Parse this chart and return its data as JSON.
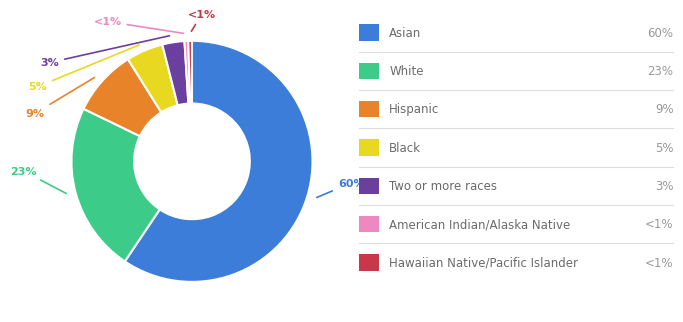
{
  "labels": [
    "Asian",
    "White",
    "Hispanic",
    "Black",
    "Two or more races",
    "American Indian/Alaska Native",
    "Hawaiian Native/Pacific Islander"
  ],
  "values": [
    60,
    23,
    9,
    5,
    3,
    0.5,
    0.5
  ],
  "colors": [
    "#3B7DD8",
    "#3DCB8A",
    "#E8832A",
    "#E8D820",
    "#6B3FA0",
    "#F088C0",
    "#C8384A"
  ],
  "legend_labels": [
    "Asian",
    "White",
    "Hispanic",
    "Black",
    "Two or more races",
    "American Indian/Alaska Native",
    "Hawaiian Native/Pacific Islander"
  ],
  "legend_percents": [
    "60%",
    "23%",
    "9%",
    "5%",
    "3%",
    "<1%",
    "<1%"
  ],
  "slice_labels": [
    "60%",
    "23%",
    "9%",
    "5%",
    "3%",
    "<1%",
    "<1%"
  ],
  "label_colors": [
    "#3B7DD8",
    "#3DCB8A",
    "#E8832A",
    "#E8D820",
    "#6B3FA0",
    "#F088C0",
    "#C8384A"
  ],
  "background_color": "#ffffff",
  "label_color": "#555555",
  "legend_label_color": "#6B6B6B",
  "legend_percent_color": "#999999"
}
